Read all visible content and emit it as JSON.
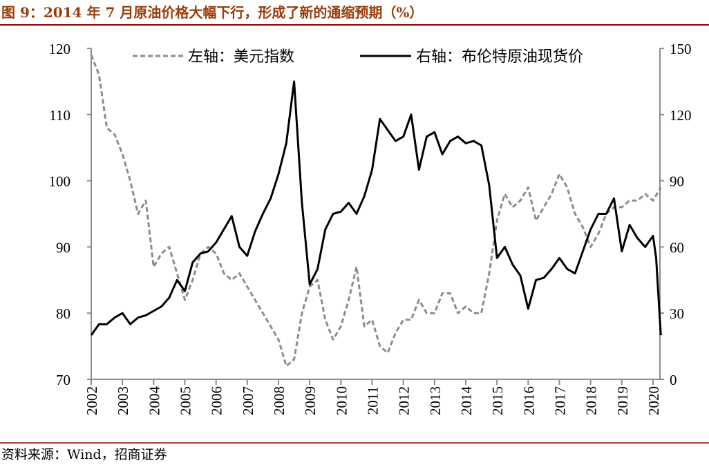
{
  "title": "图 9：2014 年 7 月原油价格大幅下行，形成了新的通缩预期（%）",
  "source": "资料来源：Wind，招商证券",
  "colors": {
    "title": "#9a3c0a",
    "rule": "#8b0000",
    "usd": "#8c8c8c",
    "brent": "#000000",
    "axis": "#8c8c8c"
  },
  "chart_data": {
    "type": "line",
    "title": "图 9：2014 年 7 月原油价格大幅下行，形成了新的通缩预期（%）",
    "x_ticks": [
      "2002",
      "2003",
      "2004",
      "2005",
      "2006",
      "2007",
      "2008",
      "2009",
      "2010",
      "2011",
      "2012",
      "2013",
      "2014",
      "2015",
      "2016",
      "2017",
      "2018",
      "2019",
      "2020"
    ],
    "xlim": [
      2002,
      2020.3
    ],
    "y_left": {
      "ylim": [
        70,
        120
      ],
      "ticks": [
        "70",
        "80",
        "90",
        "100",
        "110",
        "120"
      ]
    },
    "y_right": {
      "ylim": [
        0,
        150
      ],
      "ticks": [
        "0",
        "30",
        "60",
        "90",
        "120",
        "150"
      ]
    },
    "legend_position": "top",
    "series": [
      {
        "name": "左轴：美元指数",
        "axis": "left",
        "style": "dashed",
        "x": [
          2002.0,
          2002.25,
          2002.5,
          2002.75,
          2003.0,
          2003.25,
          2003.5,
          2003.75,
          2004.0,
          2004.25,
          2004.5,
          2004.75,
          2005.0,
          2005.25,
          2005.5,
          2005.75,
          2006.0,
          2006.25,
          2006.5,
          2006.75,
          2007.0,
          2007.25,
          2007.5,
          2007.75,
          2008.0,
          2008.25,
          2008.5,
          2008.75,
          2009.0,
          2009.25,
          2009.5,
          2009.75,
          2010.0,
          2010.25,
          2010.5,
          2010.75,
          2011.0,
          2011.25,
          2011.5,
          2011.75,
          2012.0,
          2012.25,
          2012.5,
          2012.75,
          2013.0,
          2013.25,
          2013.5,
          2013.75,
          2014.0,
          2014.25,
          2014.5,
          2014.75,
          2015.0,
          2015.25,
          2015.5,
          2015.75,
          2016.0,
          2016.25,
          2016.5,
          2016.75,
          2017.0,
          2017.25,
          2017.5,
          2017.75,
          2018.0,
          2018.25,
          2018.5,
          2018.75,
          2019.0,
          2019.25,
          2019.5,
          2019.75,
          2020.0,
          2020.25
        ],
        "values": [
          119,
          116,
          108,
          107,
          104,
          100,
          95,
          97,
          87,
          89,
          90,
          86,
          82,
          85,
          89,
          90,
          89,
          86,
          85,
          86,
          84,
          82,
          80,
          78,
          76,
          72,
          73,
          80,
          84,
          85,
          79,
          76,
          78,
          82,
          87,
          78,
          79,
          75,
          74,
          77,
          79,
          79,
          82,
          80,
          80,
          83,
          83,
          80,
          81,
          80,
          80,
          86,
          94,
          98,
          96,
          97,
          99,
          94,
          96,
          98,
          101,
          99,
          95,
          93,
          90,
          92,
          95,
          96,
          96,
          97,
          97,
          98,
          97,
          99
        ]
      },
      {
        "name": "右轴：布伦特原油现货价",
        "axis": "right",
        "style": "solid",
        "x": [
          2002.0,
          2002.25,
          2002.5,
          2002.75,
          2003.0,
          2003.25,
          2003.5,
          2003.75,
          2004.0,
          2004.25,
          2004.5,
          2004.75,
          2005.0,
          2005.25,
          2005.5,
          2005.75,
          2006.0,
          2006.25,
          2006.5,
          2006.75,
          2007.0,
          2007.25,
          2007.5,
          2007.75,
          2008.0,
          2008.25,
          2008.5,
          2008.75,
          2009.0,
          2009.25,
          2009.5,
          2009.75,
          2010.0,
          2010.25,
          2010.5,
          2010.75,
          2011.0,
          2011.25,
          2011.5,
          2011.75,
          2012.0,
          2012.25,
          2012.5,
          2012.75,
          2013.0,
          2013.25,
          2013.5,
          2013.75,
          2014.0,
          2014.25,
          2014.5,
          2014.75,
          2015.0,
          2015.25,
          2015.5,
          2015.75,
          2016.0,
          2016.25,
          2016.5,
          2016.75,
          2017.0,
          2017.25,
          2017.5,
          2017.75,
          2018.0,
          2018.25,
          2018.5,
          2018.75,
          2019.0,
          2019.25,
          2019.5,
          2019.75,
          2020.0,
          2020.1,
          2020.25
        ],
        "values": [
          20,
          25,
          25,
          28,
          30,
          25,
          28,
          29,
          31,
          33,
          37,
          45,
          40,
          53,
          57,
          58,
          62,
          68,
          74,
          60,
          56,
          67,
          75,
          82,
          93,
          107,
          135,
          80,
          43,
          50,
          68,
          75,
          76,
          80,
          75,
          83,
          95,
          118,
          113,
          108,
          110,
          120,
          95,
          110,
          112,
          102,
          108,
          110,
          107,
          108,
          106,
          88,
          55,
          60,
          52,
          47,
          32,
          45,
          46,
          50,
          55,
          50,
          48,
          58,
          68,
          75,
          75,
          82,
          58,
          70,
          64,
          60,
          65,
          55,
          20
        ]
      }
    ]
  }
}
